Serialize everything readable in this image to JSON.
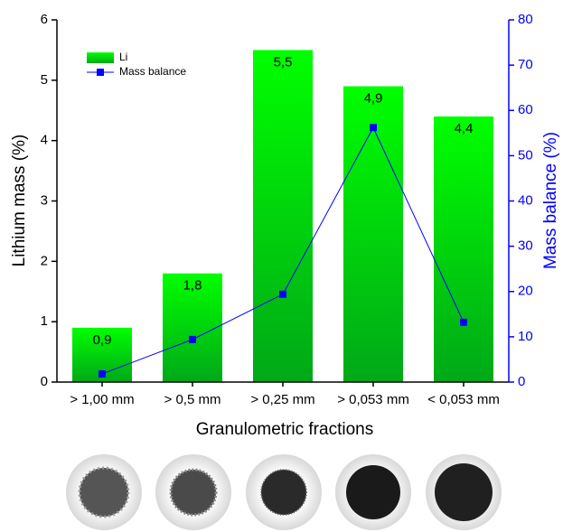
{
  "chart_data": {
    "type": "bar",
    "categories": [
      "> 1,00 mm",
      "> 0,5 mm",
      "> 0,25 mm",
      "> 0,053 mm",
      "< 0,053 mm"
    ],
    "series": [
      {
        "name": "Li",
        "color": "#00e000",
        "values": [
          0.9,
          1.8,
          5.5,
          4.9,
          4.4
        ],
        "value_labels": [
          "0,9",
          "1,8",
          "5,5",
          "4,9",
          "4,4"
        ]
      },
      {
        "name": "Mass balance",
        "type": "line",
        "color": "#0000ff",
        "axis": "y2",
        "values": [
          1.8,
          9.4,
          19.4,
          56.2,
          13.2
        ]
      }
    ],
    "xlabel": "Granulometric fractions",
    "ylabel": "Lithium mass (%)",
    "y2label": "Mass balance (%)",
    "ylim": [
      0,
      6
    ],
    "yticks": [
      0,
      1,
      2,
      3,
      4,
      5,
      6
    ],
    "y2lim": [
      0,
      80
    ],
    "y2ticks": [
      0,
      10,
      20,
      30,
      40,
      50,
      60,
      70,
      80
    ],
    "legend": "upper-left"
  }
}
